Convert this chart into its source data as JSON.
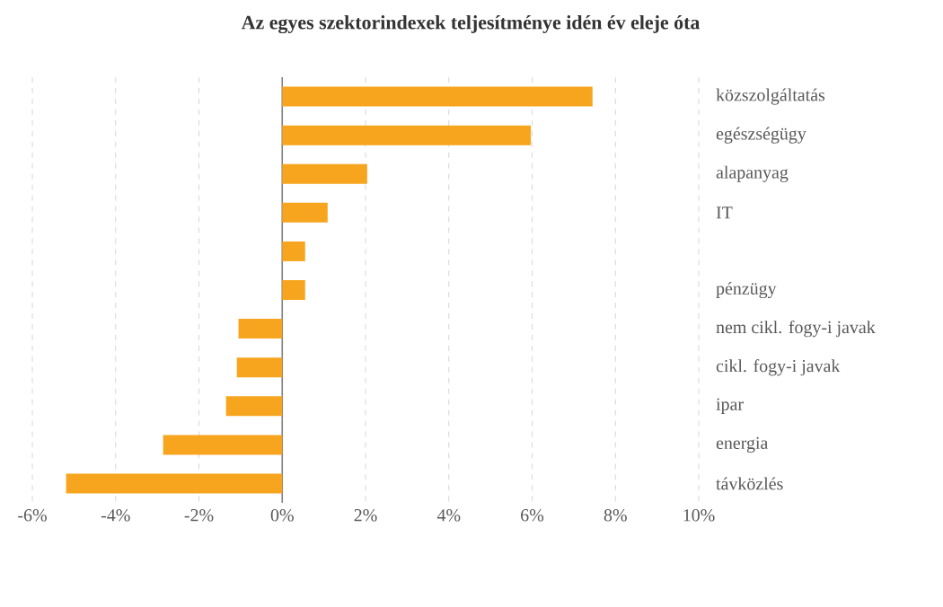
{
  "chart_data": {
    "type": "bar",
    "orientation": "horizontal",
    "title": "Az egyes szektorindexek teljesítménye idén év eleje óta",
    "categories": [
      "közszolgáltatás",
      "egészségügy",
      "alapanyag",
      "IT",
      null,
      "pénzügy",
      "nem cikl. fogy-i javak",
      "cikl. fogy-i javak",
      "ipar",
      "energia",
      "távközlés"
    ],
    "values": [
      7.45,
      5.97,
      2.04,
      1.09,
      0.55,
      0.55,
      -1.05,
      -1.09,
      -1.35,
      -2.86,
      -5.19
    ],
    "color": "#f7a51e",
    "xlim": [
      -6,
      10
    ],
    "xticks": [
      {
        "value": -6,
        "label": "-6%"
      },
      {
        "value": -4,
        "label": "-4%"
      },
      {
        "value": -2,
        "label": "-2%"
      },
      {
        "value": 0,
        "label": "0%"
      },
      {
        "value": 2,
        "label": "2%"
      },
      {
        "value": 4,
        "label": "4%"
      },
      {
        "value": 6,
        "label": "6%"
      },
      {
        "value": 8,
        "label": "8%"
      },
      {
        "value": 10,
        "label": "10%"
      }
    ],
    "grid": "x"
  }
}
